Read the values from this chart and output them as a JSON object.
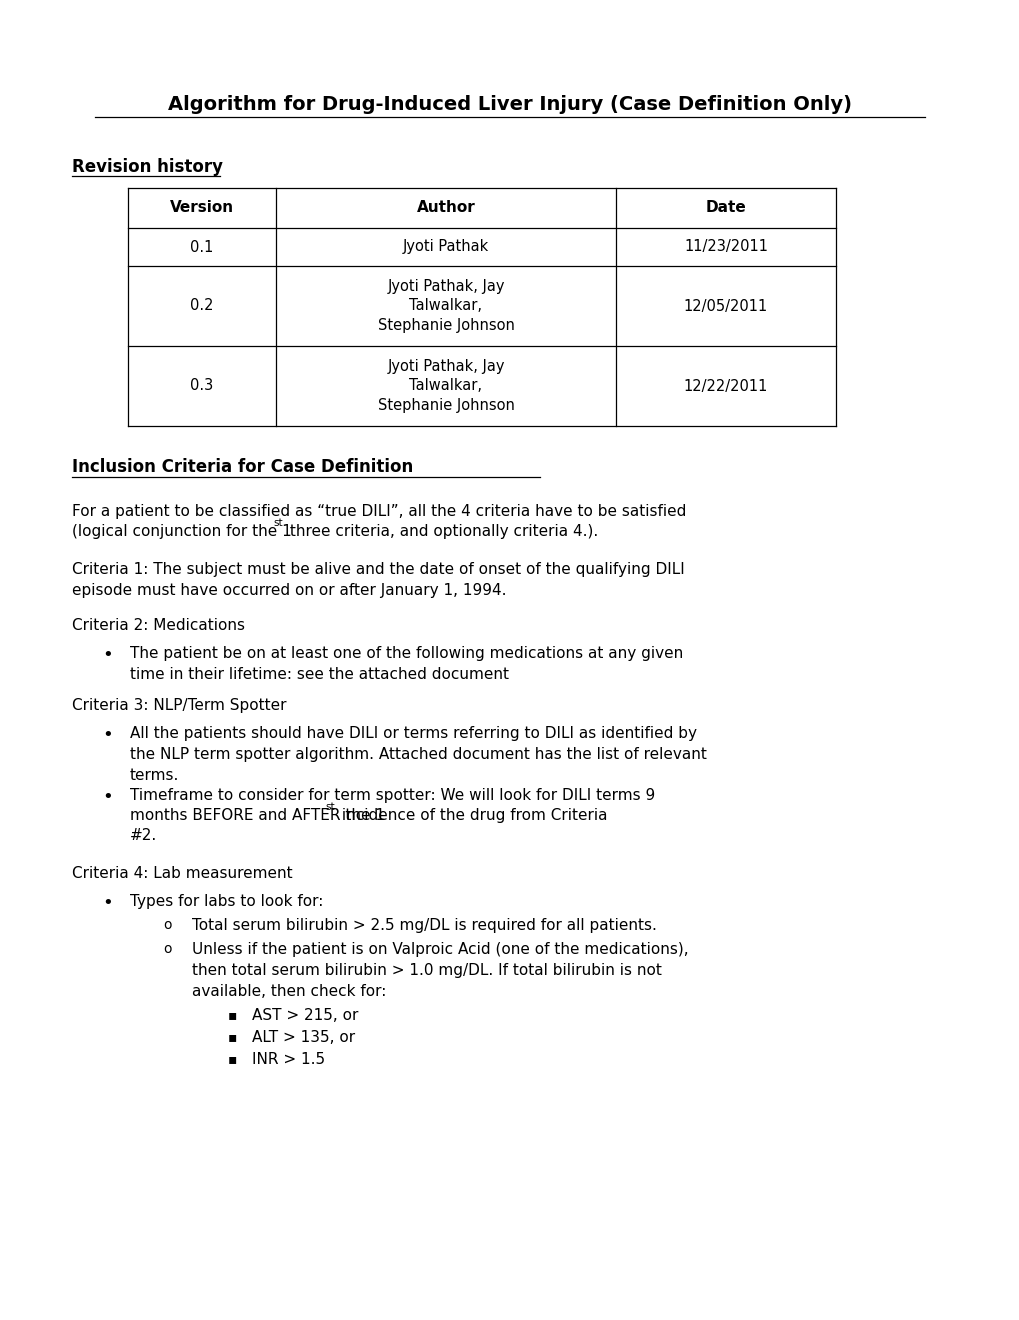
{
  "title": "Algorithm for Drug-Induced Liver Injury (Case Definition Only)",
  "revision_history_label": "Revision history",
  "table_headers": [
    "Version",
    "Author",
    "Date"
  ],
  "table_rows": [
    [
      "0.1",
      "Jyoti Pathak",
      "11/23/2011"
    ],
    [
      "0.2",
      "Jyoti Pathak, Jay\nTalwalkar,\nStephanie Johnson",
      "12/05/2011"
    ],
    [
      "0.3",
      "Jyoti Pathak, Jay\nTalwalkar,\nStephanie Johnson",
      "12/22/2011"
    ]
  ],
  "section2_title": "Inclusion Criteria for Case Definition",
  "criteria1": "Criteria 1: The subject must be alive and the date of onset of the qualifying DILI\nepisode must have occurred on or after January 1, 1994.",
  "criteria2_label": "Criteria 2: Medications",
  "criteria2_bullet": "The patient be on at least one of the following medications at any given\ntime in their lifetime: see the attached document",
  "criteria3_label": "Criteria 3: NLP/Term Spotter",
  "criteria3_b1": "All the patients should have DILI or terms referring to DILI as identified by\nthe NLP term spotter algorithm. Attached document has the list of relevant\nterms.",
  "criteria3_b2a": "Timeframe to consider for term spotter: We will look for DILI terms 9\nmonths BEFORE and AFTER the 1",
  "criteria3_b2b": " incidence of the drug from Criteria\n#2.",
  "criteria4_label": "Criteria 4: Lab measurement",
  "criteria4_bullet_main": "Types for labs to look for:",
  "criteria4_sub1": "Total serum bilirubin > 2.5 mg/DL is required for all patients.",
  "criteria4_sub2": "Unless if the patient is on Valproic Acid (one of the medications),\nthen total serum bilirubin > 1.0 mg/DL. If total bilirubin is not\navailable, then check for:",
  "criteria4_sub2_items": [
    "AST > 215, or",
    "ALT > 135, or",
    "INR > 1.5"
  ],
  "bg_color": "#ffffff",
  "text_color": "#000000"
}
